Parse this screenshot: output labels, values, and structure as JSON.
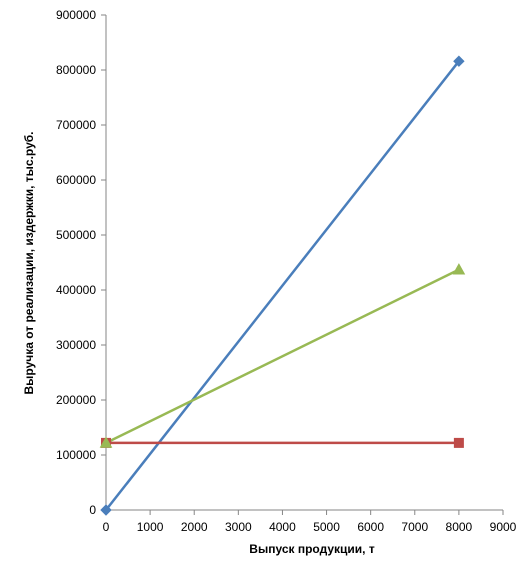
{
  "chart_data": {
    "type": "line",
    "title": "",
    "xlabel": "Выпуск продукции, т",
    "ylabel": "Выручка от реализации, издержки, тыс.руб.",
    "xlim": [
      0,
      9000
    ],
    "ylim": [
      0,
      900000
    ],
    "x_ticks": [
      "0",
      "1000",
      "2000",
      "3000",
      "4000",
      "5000",
      "6000",
      "7000",
      "8000",
      "9000"
    ],
    "y_ticks": [
      "0",
      "100000",
      "200000",
      "300000",
      "400000",
      "500000",
      "600000",
      "700000",
      "800000",
      "900000"
    ],
    "grid": false,
    "legend": "none",
    "series": [
      {
        "marker": "diamond",
        "color": "#4A7EBB",
        "x": [
          0,
          8000
        ],
        "y": [
          0,
          816000
        ]
      },
      {
        "marker": "square",
        "color": "#BE4B48",
        "x": [
          0,
          8000
        ],
        "y": [
          122000,
          122000
        ]
      },
      {
        "marker": "triangle",
        "color": "#98B954",
        "x": [
          0,
          8000
        ],
        "y": [
          122000,
          437000
        ]
      }
    ]
  }
}
